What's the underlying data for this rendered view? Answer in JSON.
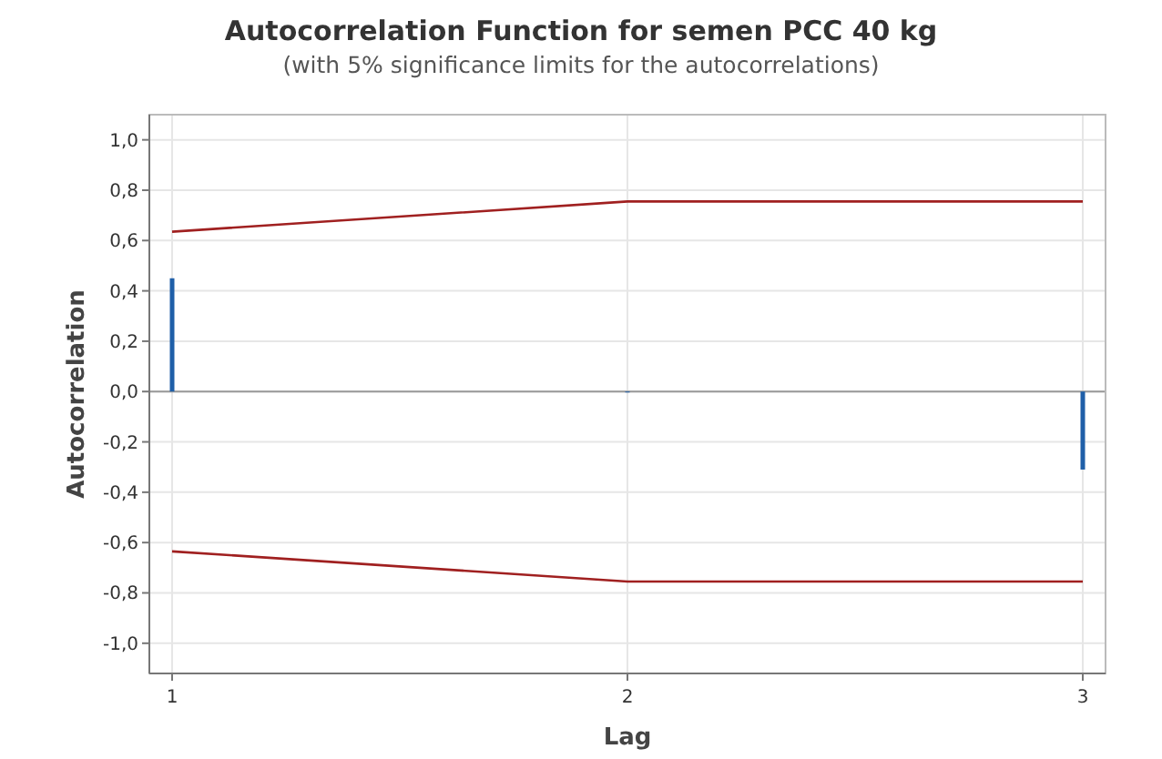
{
  "chart_data": {
    "type": "bar",
    "title": "Autocorrelation Function for semen PCC 40 kg",
    "subtitle": "(with 5% significance limits for the autocorrelations)",
    "xlabel": "Lag",
    "ylabel": "Autocorrelation",
    "series": [
      {
        "color": "#1f5fa8",
        "x": [
          1,
          2,
          3
        ],
        "values": [
          0.45,
          0.0,
          -0.31
        ]
      },
      {
        "type": "line",
        "color": "#a02020",
        "x": [
          1,
          2,
          3
        ],
        "values": [
          0.635,
          0.755,
          0.755
        ]
      },
      {
        "type": "line",
        "color": "#a02020",
        "x": [
          1,
          2,
          3
        ],
        "values": [
          -0.635,
          -0.755,
          -0.755
        ]
      }
    ],
    "xlim": [
      0.95,
      3.05
    ],
    "xticks": [
      1,
      2,
      3
    ],
    "ylim": [
      -1.12,
      1.1
    ],
    "yticks": [
      {
        "value": -1,
        "label": "-1,0"
      },
      {
        "value": -0.8,
        "label": "-0,8"
      },
      {
        "value": -0.6,
        "label": "-0,6"
      },
      {
        "value": -0.4,
        "label": "-0,4"
      },
      {
        "value": -0.2,
        "label": "-0,2"
      },
      {
        "value": 0,
        "label": "0,0"
      },
      {
        "value": 0.2,
        "label": "0,2"
      },
      {
        "value": 0.4,
        "label": "0,4"
      },
      {
        "value": 0.6,
        "label": "0,6"
      },
      {
        "value": 0.8,
        "label": "0,8"
      },
      {
        "value": 1,
        "label": "1,0"
      }
    ],
    "grid": true,
    "line_style": "solid",
    "marker": "none"
  }
}
